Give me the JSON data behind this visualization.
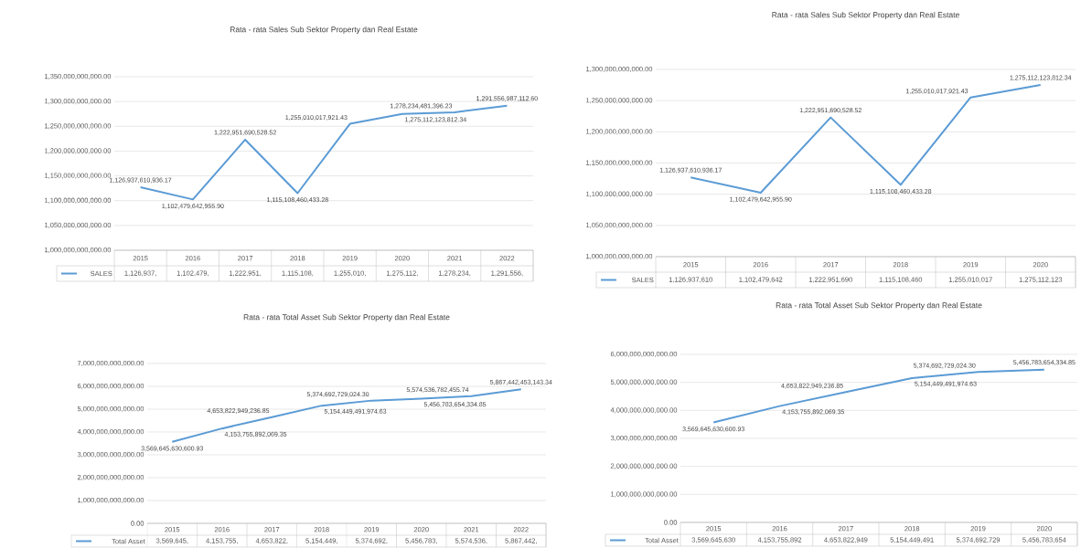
{
  "chart_data": [
    {
      "type": "line",
      "title": "Rata - rata Sales Sub Sektor Property dan Real Estate",
      "categories": [
        "2015",
        "2016",
        "2017",
        "2018",
        "2019",
        "2020",
        "2021",
        "2022"
      ],
      "series": [
        {
          "name": "SALES",
          "color": "#5b9bd5",
          "values": [
            1126937610936.17,
            1102479642955.9,
            1222951690528.52,
            1115108460433.28,
            1255010017921.43,
            1275112123812.34,
            1278234481396.23,
            1291556987112.6
          ],
          "value_labels": [
            "1,126,937,610,936.17",
            "1,102,479,642,955.90",
            "1,222,951,690,528.52",
            "1,115,108,460,433.28",
            "1,255,010,017,921.43",
            "1,275,112,123,812.34",
            "1,278,234,481,396.23",
            "1,291,556,987,112.60"
          ]
        }
      ],
      "annotations": [
        "1,126,937,",
        "1,102,479,",
        "1,222,951,",
        "1,115,108,",
        "1,255,010,",
        "1,275,112,",
        "1,278,234,",
        "1,291,556,"
      ],
      "ylim": [
        1000000000000,
        1350000000000
      ],
      "yticks": [
        {
          "value": 1000000000000,
          "label": "1,000,000,000,000.00"
        },
        {
          "value": 1050000000000,
          "label": "1,050,000,000,000.00"
        },
        {
          "value": 1100000000000,
          "label": "1,100,000,000,000.00"
        },
        {
          "value": 1150000000000,
          "label": "1,150,000,000,000.00"
        },
        {
          "value": 1200000000000,
          "label": "1,200,000,000,000.00"
        },
        {
          "value": 1250000000000,
          "label": "1,250,000,000,000.00"
        },
        {
          "value": 1300000000000,
          "label": "1,300,000,000,000.00"
        },
        {
          "value": 1350000000000,
          "label": "1,350,000,000,000.00"
        }
      ],
      "grid": "y",
      "legend": "bottom"
    },
    {
      "type": "line",
      "title": "Rata - rata Sales Sub Sektor Property dan Real Estate",
      "categories": [
        "2015",
        "2016",
        "2017",
        "2018",
        "2019",
        "2020"
      ],
      "series": [
        {
          "name": "SALES",
          "color": "#5b9bd5",
          "values": [
            1126937610936.17,
            1102479642955.9,
            1222951690528.52,
            1115108460433.28,
            1255010017921.43,
            1275112123812.34
          ],
          "value_labels": [
            "1,126,937,610,936.17",
            "1,102,479,642,955.90",
            "1,222,951,690,528.52",
            "1,115,108,460,433.28",
            "1,255,010,017,921.43",
            "1,275,112,123,812.34"
          ]
        }
      ],
      "annotations": [
        "1,126,937,610",
        "1,102,479,642",
        "1,222,951,690",
        "1,115,108,460",
        "1,255,010,017",
        "1,275,112,123"
      ],
      "ylim": [
        1000000000000,
        1300000000000
      ],
      "yticks": [
        {
          "value": 1000000000000,
          "label": "1,000,000,000,000.00"
        },
        {
          "value": 1050000000000,
          "label": "1,050,000,000,000.00"
        },
        {
          "value": 1100000000000,
          "label": "1,100,000,000,000.00"
        },
        {
          "value": 1150000000000,
          "label": "1,150,000,000,000.00"
        },
        {
          "value": 1200000000000,
          "label": "1,200,000,000,000.00"
        },
        {
          "value": 1250000000000,
          "label": "1,250,000,000,000.00"
        },
        {
          "value": 1300000000000,
          "label": "1,300,000,000,000.00"
        }
      ],
      "grid": "y",
      "legend": "bottom"
    },
    {
      "type": "line",
      "title": "Rata - rata Total Asset Sub Sektor Property dan Real Estate",
      "categories": [
        "2015",
        "2016",
        "2017",
        "2018",
        "2019",
        "2020",
        "2021",
        "2022"
      ],
      "series": [
        {
          "name": "Total Asset",
          "color": "#5b9bd5",
          "values": [
            3569645630600.93,
            4153755892069.35,
            4653822949236.85,
            5154449491974.63,
            5374692729024.3,
            5456783654334.85,
            5574536782455.74,
            5867442453143.34
          ],
          "value_labels": [
            "3,569,645,630,600.93",
            "4,153,755,892,069.35",
            "4,653,822,949,236.85",
            "5,154,449,491,974.63",
            "5,374,692,729,024.30",
            "5,456,783,654,334.85",
            "5,574,536,782,455.74",
            "5,867,442,453,143.34"
          ]
        }
      ],
      "annotations": [
        "3,569,645,",
        "4,153,755,",
        "4,653,822,",
        "5,154,449,",
        "5,374,692,",
        "5,456,783,",
        "5,574,536,",
        "5,867,442,"
      ],
      "ylim": [
        0,
        7000000000000
      ],
      "yticks": [
        {
          "value": 0,
          "label": "0.00"
        },
        {
          "value": 1000000000000,
          "label": "1,000,000,000,000.00"
        },
        {
          "value": 2000000000000,
          "label": "2,000,000,000,000.00"
        },
        {
          "value": 3000000000000,
          "label": "3,000,000,000,000.00"
        },
        {
          "value": 4000000000000,
          "label": "4,000,000,000,000.00"
        },
        {
          "value": 5000000000000,
          "label": "5,000,000,000,000.00"
        },
        {
          "value": 6000000000000,
          "label": "6,000,000,000,000.00"
        },
        {
          "value": 7000000000000,
          "label": "7,000,000,000,000.00"
        }
      ],
      "grid": "y",
      "legend": "bottom"
    },
    {
      "type": "line",
      "title": "Rata - rata Total Asset Sub Sektor Property dan Real Estate",
      "categories": [
        "2015",
        "2016",
        "2017",
        "2018",
        "2019",
        "2020"
      ],
      "series": [
        {
          "name": "Total Asset",
          "color": "#5b9bd5",
          "values": [
            3569645630600.93,
            4153755892069.35,
            4653822949236.85,
            5154449491974.63,
            5374692729024.3,
            5456783654334.85
          ],
          "value_labels": [
            "3,569,645,630,600.93",
            "4,153,755,892,069.35",
            "4,653,822,949,236.85",
            "5,154,449,491,974.63",
            "5,374,692,729,024.30",
            "5,456,783,654,334.85"
          ]
        }
      ],
      "annotations": [
        "3,569,645,630",
        "4,153,755,892",
        "4,653,822,949",
        "5,154,449,491",
        "5,374,692,729",
        "5,456,783,654"
      ],
      "ylim": [
        0,
        6000000000000
      ],
      "yticks": [
        {
          "value": 0,
          "label": "0.00"
        },
        {
          "value": 1000000000000,
          "label": "1,000,000,000,000.00"
        },
        {
          "value": 2000000000000,
          "label": "2,000,000,000,000.00"
        },
        {
          "value": 3000000000000,
          "label": "3,000,000,000,000.00"
        },
        {
          "value": 4000000000000,
          "label": "4,000,000,000,000.00"
        },
        {
          "value": 5000000000000,
          "label": "5,000,000,000,000.00"
        },
        {
          "value": 6000000000000,
          "label": "6,000,000,000,000.00"
        }
      ],
      "grid": "y",
      "legend": "bottom"
    }
  ]
}
